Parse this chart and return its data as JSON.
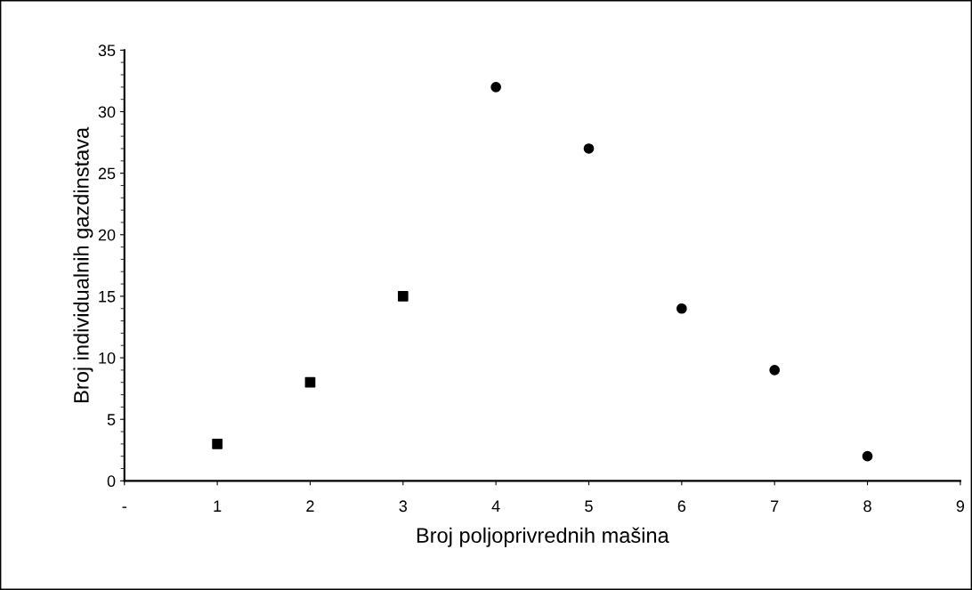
{
  "chart_data": {
    "type": "scatter",
    "xlabel": "Broj poljoprivrednih mašina",
    "ylabel": "Broj individualnih gazdinstava",
    "series": [
      {
        "x": [
          1,
          2,
          3
        ],
        "values": [
          3,
          8,
          15
        ],
        "color": "#000000",
        "marker": "square"
      },
      {
        "x": [
          4,
          5,
          6,
          7,
          8
        ],
        "values": [
          32,
          27,
          14,
          9,
          2
        ],
        "color": "#000000",
        "marker": "circle"
      }
    ],
    "xlim": [
      0,
      9
    ],
    "xticks": [
      {
        "value": 0,
        "label": "-"
      },
      1,
      2,
      3,
      4,
      5,
      6,
      7,
      8,
      9
    ],
    "ylim": [
      0,
      35
    ],
    "yticks": [
      0,
      5,
      10,
      15,
      20,
      25,
      30,
      35
    ],
    "grid": false,
    "legend": false
  }
}
